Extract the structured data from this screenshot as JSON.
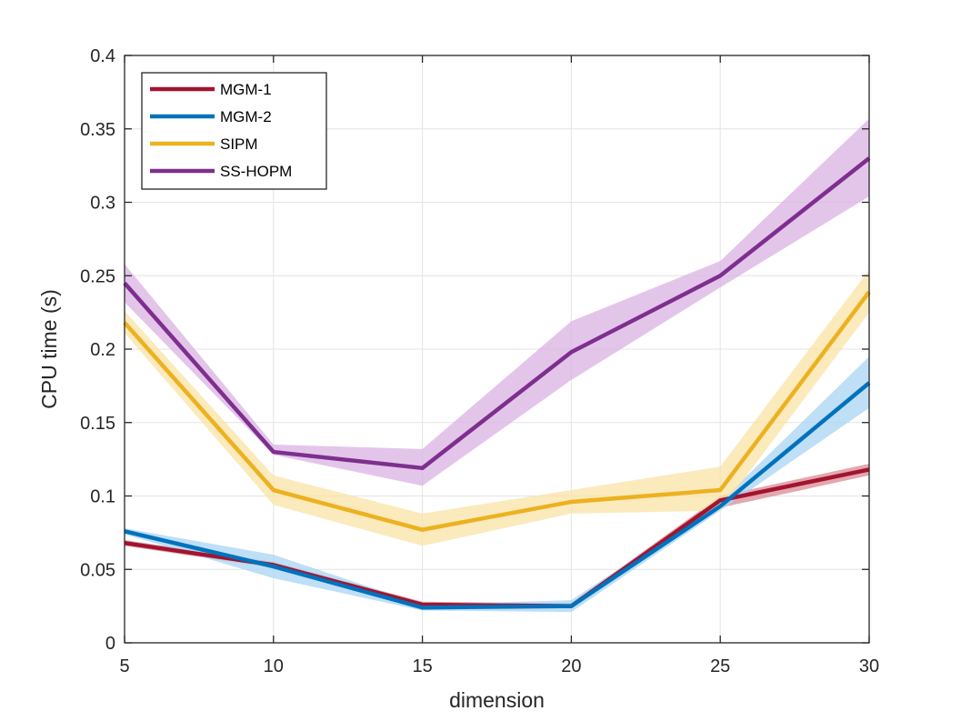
{
  "chart_data": {
    "type": "line",
    "title": "",
    "xlabel": "dimension",
    "ylabel": "CPU time (s)",
    "x": [
      5,
      10,
      15,
      20,
      25,
      30
    ],
    "xlim": [
      5,
      30
    ],
    "ylim": [
      0,
      0.4
    ],
    "xticks": [
      "5",
      "10",
      "15",
      "20",
      "25",
      "30"
    ],
    "yticks": [
      "0",
      "0.05",
      "0.1",
      "0.15",
      "0.2",
      "0.25",
      "0.3",
      "0.35",
      "0.4"
    ],
    "grid": true,
    "legend_position": "top-left",
    "series": [
      {
        "name": "MGM-1",
        "color": "#A2142F",
        "band_color": "#D98A94",
        "values": [
          0.068,
          0.053,
          0.026,
          0.025,
          0.097,
          0.118
        ],
        "lower": [
          0.066,
          0.051,
          0.025,
          0.024,
          0.092,
          0.114
        ],
        "upper": [
          0.07,
          0.055,
          0.028,
          0.027,
          0.1,
          0.122
        ]
      },
      {
        "name": "MGM-2",
        "color": "#0072BD",
        "band_color": "#A8D4F2",
        "values": [
          0.076,
          0.052,
          0.024,
          0.025,
          0.093,
          0.177
        ],
        "lower": [
          0.074,
          0.044,
          0.022,
          0.021,
          0.09,
          0.16
        ],
        "upper": [
          0.078,
          0.06,
          0.026,
          0.029,
          0.096,
          0.195
        ]
      },
      {
        "name": "SIPM",
        "color": "#EDB120",
        "band_color": "#F9E3A6",
        "values": [
          0.218,
          0.104,
          0.077,
          0.096,
          0.104,
          0.239
        ],
        "lower": [
          0.211,
          0.094,
          0.066,
          0.088,
          0.09,
          0.225
        ],
        "upper": [
          0.226,
          0.114,
          0.088,
          0.104,
          0.12,
          0.254
        ]
      },
      {
        "name": "SS-HOPM",
        "color": "#7E2F8E",
        "band_color": "#D9B2E3",
        "values": [
          0.245,
          0.13,
          0.119,
          0.198,
          0.25,
          0.33
        ],
        "lower": [
          0.232,
          0.128,
          0.107,
          0.179,
          0.242,
          0.304
        ],
        "upper": [
          0.258,
          0.135,
          0.132,
          0.219,
          0.26,
          0.357
        ]
      }
    ]
  }
}
